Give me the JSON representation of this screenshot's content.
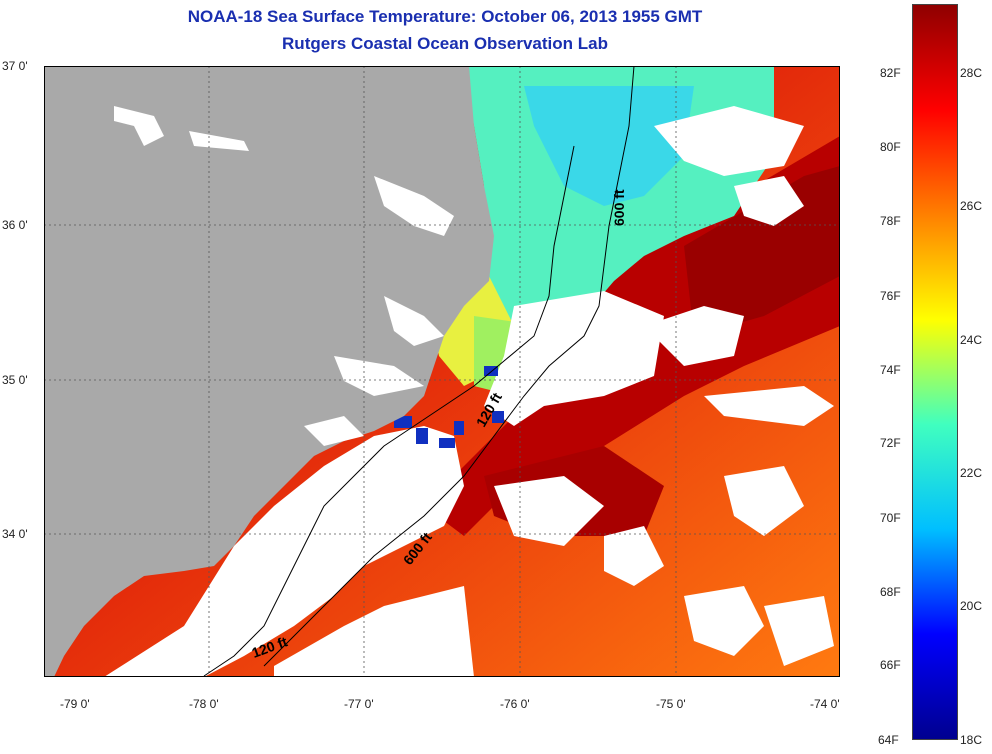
{
  "title": "NOAA-18 Sea Surface Temperature:  October 06, 2013 1955 GMT",
  "subtitle": "Rutgers Coastal Ocean Observation Lab",
  "map": {
    "lat_labels": [
      "37 0'",
      "36 0'",
      "35 0'",
      "34 0'"
    ],
    "lon_labels": [
      "-79 0'",
      "-78 0'",
      "-77 0'",
      "-76 0'",
      "-75 0'",
      "-74 0'"
    ],
    "contour_labels": [
      "600 ft",
      "120 ft",
      "600 ft",
      "120 ft"
    ],
    "colors": {
      "land": "#a9a9a9",
      "cloud": "#ffffff"
    }
  },
  "colorbar": {
    "fahrenheit_labels": [
      "82F",
      "80F",
      "78F",
      "76F",
      "74F",
      "72F",
      "70F",
      "68F",
      "66F",
      "64F"
    ],
    "celsius_labels": [
      "28C",
      "26C",
      "24C",
      "22C",
      "20C",
      "18C"
    ],
    "colors": [
      "#00008f",
      "#0000ff",
      "#00bfff",
      "#40ffbf",
      "#ffff00",
      "#ff8000",
      "#ff0000",
      "#8f0000"
    ]
  }
}
